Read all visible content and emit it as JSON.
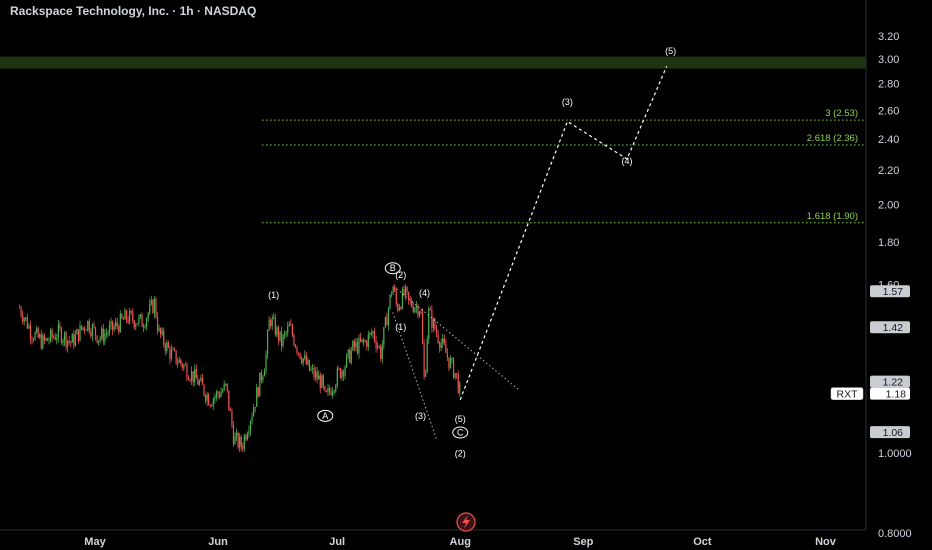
{
  "header": {
    "title": "Rackspace Technology, Inc. · 1h · NASDAQ"
  },
  "colors": {
    "background": "#000000",
    "up_candle": "#4caf50",
    "down_candle": "#ef5350",
    "fib_line": "#8bd14a",
    "target_zone": "#1f3a12",
    "projection": "#ffffff"
  },
  "icons": {
    "alert": "lightning-icon"
  },
  "chart_data": {
    "type": "candlestick",
    "symbol": "RXT",
    "interval": "1h",
    "exchange": "NASDAQ",
    "y_scale": "log",
    "ylim": [
      0.68,
      3.45
    ],
    "y_ticks": [
      "3.20",
      "3.00",
      "2.80",
      "2.60",
      "2.40",
      "2.20",
      "2.00",
      "1.80",
      "1.60",
      "1.0000",
      "0.8000"
    ],
    "x_ticks": [
      "May",
      "Jun",
      "Jul",
      "Aug",
      "Sep",
      "Oct",
      "Nov"
    ],
    "price_path": [
      [
        "2024-04-12",
        1.5
      ],
      [
        "2024-04-15",
        1.4
      ],
      [
        "2024-04-18",
        1.36
      ],
      [
        "2024-04-22",
        1.4
      ],
      [
        "2024-04-25",
        1.36
      ],
      [
        "2024-04-29",
        1.44
      ],
      [
        "2024-05-02",
        1.38
      ],
      [
        "2024-05-06",
        1.42
      ],
      [
        "2024-05-09",
        1.46
      ],
      [
        "2024-05-13",
        1.44
      ],
      [
        "2024-05-16",
        1.52
      ],
      [
        "2024-05-17",
        1.4
      ],
      [
        "2024-05-20",
        1.32
      ],
      [
        "2024-05-23",
        1.28
      ],
      [
        "2024-05-27",
        1.22
      ],
      [
        "2024-05-30",
        1.16
      ],
      [
        "2024-06-03",
        1.2
      ],
      [
        "2024-06-05",
        1.04
      ],
      [
        "2024-06-07",
        1.02
      ],
      [
        "2024-06-10",
        1.14
      ],
      [
        "2024-06-13",
        1.3
      ],
      [
        "2024-06-14",
        1.46
      ],
      [
        "2024-06-17",
        1.36
      ],
      [
        "2024-06-19",
        1.42
      ],
      [
        "2024-06-21",
        1.34
      ],
      [
        "2024-06-24",
        1.26
      ],
      [
        "2024-06-27",
        1.22
      ],
      [
        "2024-06-28",
        1.16
      ],
      [
        "2024-07-01",
        1.24
      ],
      [
        "2024-07-03",
        1.28
      ],
      [
        "2024-07-05",
        1.34
      ],
      [
        "2024-07-08",
        1.36
      ],
      [
        "2024-07-10",
        1.4
      ],
      [
        "2024-07-12",
        1.32
      ],
      [
        "2024-07-15",
        1.6
      ],
      [
        "2024-07-16",
        1.5
      ],
      [
        "2024-07-18",
        1.56
      ],
      [
        "2024-07-19",
        1.52
      ],
      [
        "2024-07-22",
        1.5
      ],
      [
        "2024-07-23",
        1.2
      ],
      [
        "2024-07-24",
        1.48
      ],
      [
        "2024-07-26",
        1.4
      ],
      [
        "2024-07-29",
        1.3
      ],
      [
        "2024-07-31",
        1.24
      ],
      [
        "2024-08-01",
        1.18
      ]
    ],
    "last_price": {
      "symbol": "RXT",
      "value": "1.18"
    },
    "price_tags": [
      "1.57",
      "1.42",
      "1.22",
      "1.06"
    ],
    "fib_levels": [
      {
        "label": "3 (2.53)",
        "value": 2.53
      },
      {
        "label": "2.618 (2.36)",
        "value": 2.36
      },
      {
        "label": "1.618 (1.90)",
        "value": 1.9
      }
    ],
    "target_zone": {
      "low": 2.92,
      "high": 3.02
    },
    "projection_path": [
      [
        "2024-08-01",
        1.16
      ],
      [
        "2024-08-28",
        2.52
      ],
      [
        "2024-09-12",
        2.27
      ],
      [
        "2024-09-22",
        2.94
      ]
    ],
    "wave_labels": [
      {
        "text": "(1)",
        "date": "2024-06-15",
        "price": 1.54
      },
      {
        "text": "A",
        "date": "2024-06-28",
        "price": 1.1,
        "circled": true
      },
      {
        "text": "B",
        "date": "2024-07-15",
        "price": 1.66,
        "circled": true
      },
      {
        "text": "(2)",
        "date": "2024-07-17",
        "price": 1.63
      },
      {
        "text": "(4)",
        "date": "2024-07-23",
        "price": 1.55
      },
      {
        "text": "(1)",
        "date": "2024-07-17",
        "price": 1.41
      },
      {
        "text": "(3)",
        "date": "2024-07-22",
        "price": 1.1
      },
      {
        "text": "(5)",
        "date": "2024-08-01",
        "price": 1.09
      },
      {
        "text": "C",
        "date": "2024-08-01",
        "price": 1.05,
        "circled": true
      },
      {
        "text": "(2)",
        "date": "2024-08-01",
        "price": 0.99
      },
      {
        "text": "(3)",
        "date": "2024-08-28",
        "price": 2.64
      },
      {
        "text": "(4)",
        "date": "2024-09-12",
        "price": 2.24
      },
      {
        "text": "(5)",
        "date": "2024-09-23",
        "price": 3.04
      }
    ]
  }
}
